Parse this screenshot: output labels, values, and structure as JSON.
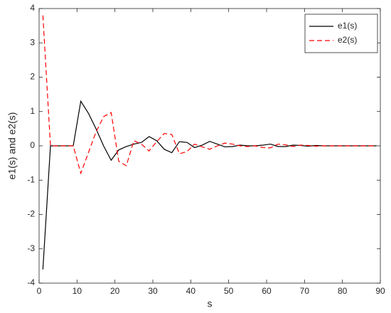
{
  "chart_data": {
    "type": "line",
    "xlabel": "s",
    "ylabel": "e1(s) and e2(s)",
    "x": [
      1,
      3,
      5,
      7,
      9,
      11,
      13,
      15,
      17,
      19,
      21,
      23,
      25,
      27,
      29,
      31,
      33,
      35,
      37,
      39,
      41,
      43,
      45,
      47,
      49,
      51,
      53,
      55,
      57,
      59,
      61,
      63,
      65,
      67,
      69,
      71,
      73,
      75,
      77,
      79,
      81,
      83,
      85,
      87,
      89
    ],
    "series": [
      {
        "name": "e1(s)",
        "color": "#000000",
        "dash": false,
        "values": [
          -3.6,
          0,
          0,
          0,
          0,
          1.3,
          0.95,
          0.5,
          0,
          -0.42,
          -0.12,
          -0.02,
          0.05,
          0.1,
          0.27,
          0.15,
          -0.1,
          -0.2,
          0.12,
          0.1,
          -0.05,
          0.02,
          0.13,
          0.05,
          -0.03,
          -0.02,
          0.02,
          0,
          0,
          0.02,
          0.05,
          -0.02,
          -0.02,
          0.02,
          0.01,
          -0.01,
          0.01,
          0,
          0,
          0,
          0,
          0,
          0,
          0,
          0
        ]
      },
      {
        "name": "e2(s)",
        "color": "#ff0000",
        "dash": true,
        "values": [
          3.8,
          0,
          0,
          0,
          0,
          -0.8,
          -0.2,
          0.4,
          0.85,
          0.97,
          -0.45,
          -0.58,
          0.15,
          0.05,
          -0.15,
          0.12,
          0.36,
          0.33,
          -0.23,
          -0.17,
          0.05,
          -0.03,
          -0.1,
          0,
          0.08,
          0.05,
          0,
          -0.02,
          0,
          -0.05,
          -0.06,
          0.05,
          0.03,
          -0.02,
          0.02,
          0.01,
          -0.01,
          0,
          0,
          0,
          0,
          0,
          0,
          0,
          0
        ]
      }
    ],
    "xlim": [
      0,
      90
    ],
    "xticks": [
      0,
      10,
      20,
      30,
      40,
      50,
      60,
      70,
      80,
      90
    ],
    "ylim": [
      -4,
      4
    ],
    "yticks": [
      -4,
      -3,
      -2,
      -1,
      0,
      1,
      2,
      3,
      4
    ],
    "grid": false,
    "legend": "northeast"
  }
}
